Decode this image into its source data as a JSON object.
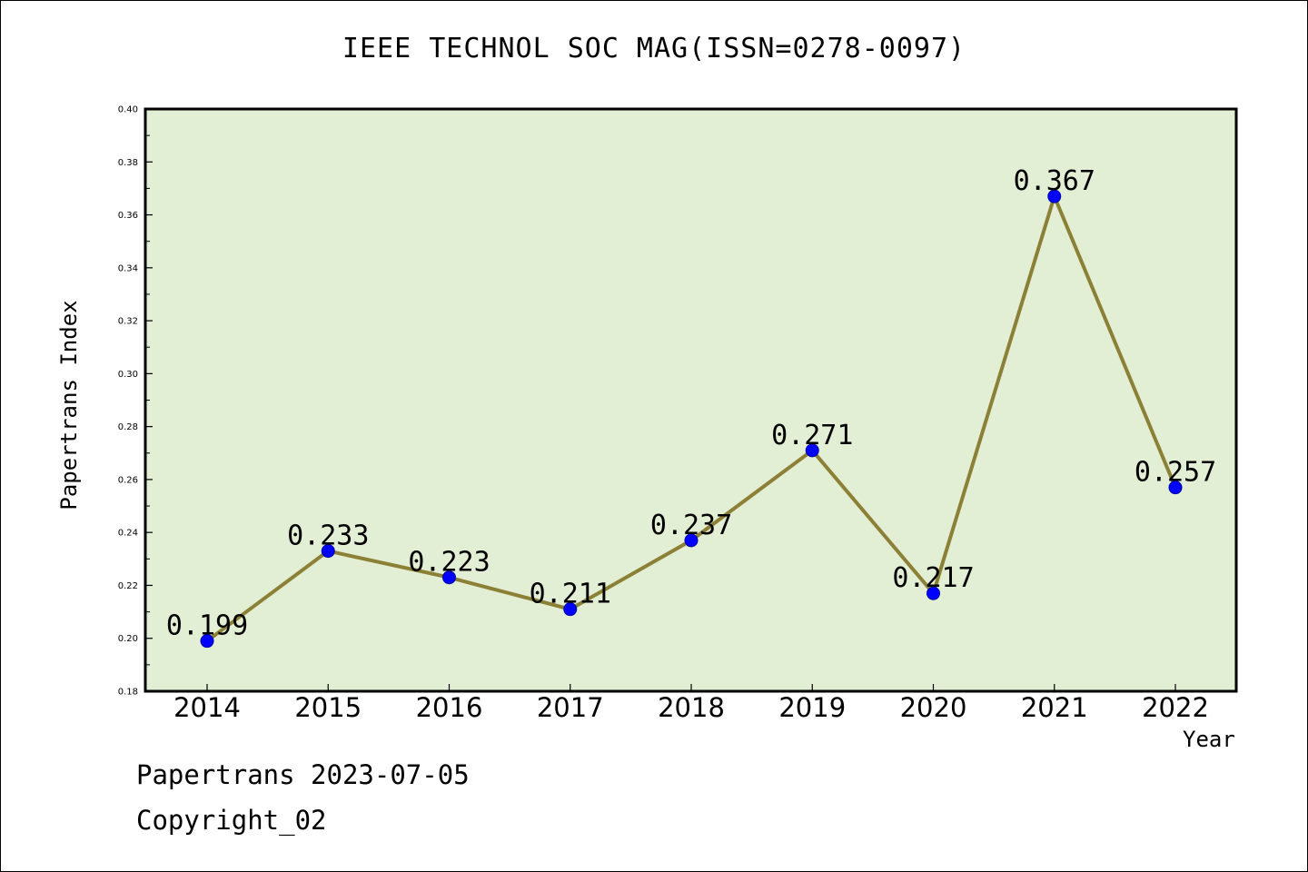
{
  "chart_data": {
    "type": "line",
    "title": "IEEE TECHNOL SOC MAG(ISSN=0278-0097)",
    "xlabel": "Year",
    "ylabel": "Papertrans Index",
    "categories": [
      "2014",
      "2015",
      "2016",
      "2017",
      "2018",
      "2019",
      "2020",
      "2021",
      "2022"
    ],
    "series": [
      {
        "values": [
          0.199,
          0.233,
          0.223,
          0.211,
          0.237,
          0.271,
          0.217,
          0.367,
          0.257
        ],
        "labels": [
          "0.199",
          "0.233",
          "0.223",
          "0.211",
          "0.237",
          "0.271",
          "0.217",
          "0.367",
          "0.257"
        ]
      }
    ],
    "ylim": [
      0.18,
      0.4
    ],
    "yticks": [
      "0.18",
      "0.20",
      "0.22",
      "0.24",
      "0.26",
      "0.28",
      "0.30",
      "0.32",
      "0.34",
      "0.36",
      "0.38",
      "0.40"
    ],
    "grid": false,
    "colors": {
      "plot_background": "#e2efd4",
      "line": "#8b8035",
      "marker": "#0000ff"
    }
  },
  "footer": {
    "date_line": "Papertrans 2023-07-05",
    "copyright_line": "Copyright_02"
  }
}
